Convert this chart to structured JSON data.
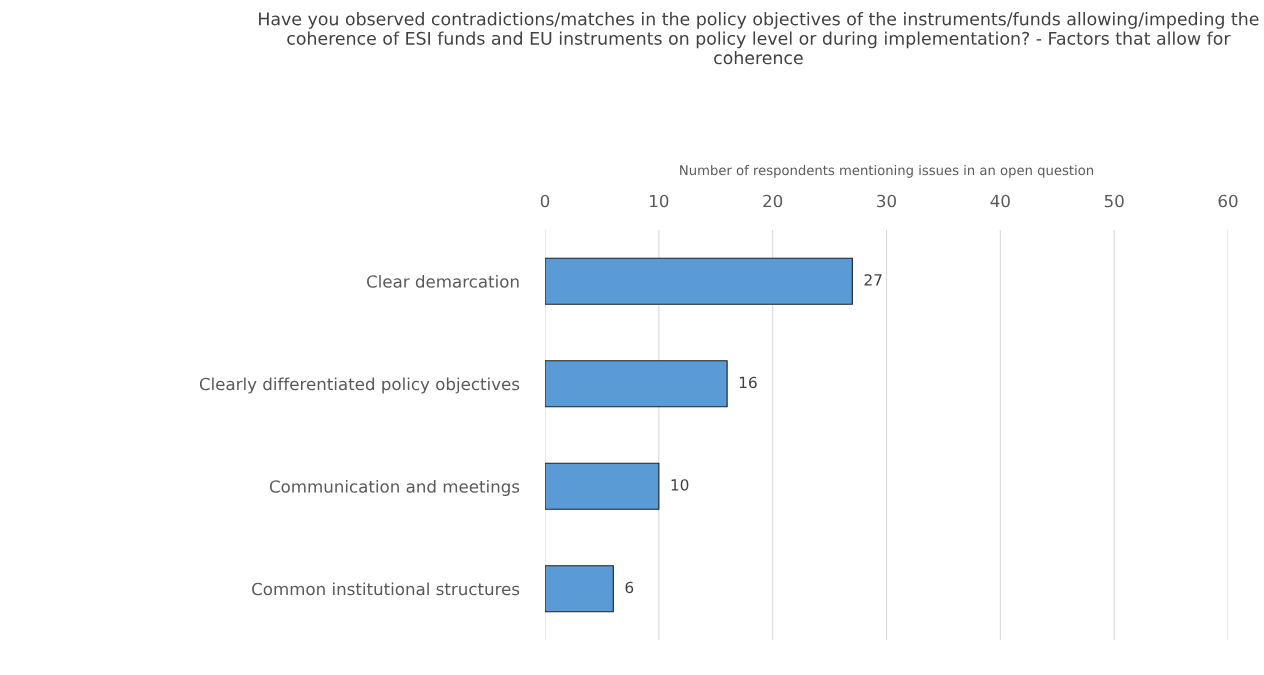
{
  "chart_data": {
    "type": "bar",
    "orientation": "horizontal",
    "title": "Have you observed contradictions/matches in the policy objectives of the instruments/funds allowing/impeding the coherence of ESI funds and EU instruments on policy level or during implementation? - Factors that allow for coherence",
    "xlabel": "Number of respondents mentioning issues in an open question",
    "categories": [
      "Clear demarcation",
      "Clearly differentiated policy objectives",
      "Communication and meetings",
      "Common institutional structures"
    ],
    "values": [
      27,
      16,
      10,
      6
    ],
    "color": "#5b9bd5",
    "xlim": [
      0,
      60
    ],
    "xticks": [
      0,
      10,
      20,
      30,
      40,
      50,
      60
    ],
    "grid": "x",
    "data_labels": true,
    "legend": false
  }
}
